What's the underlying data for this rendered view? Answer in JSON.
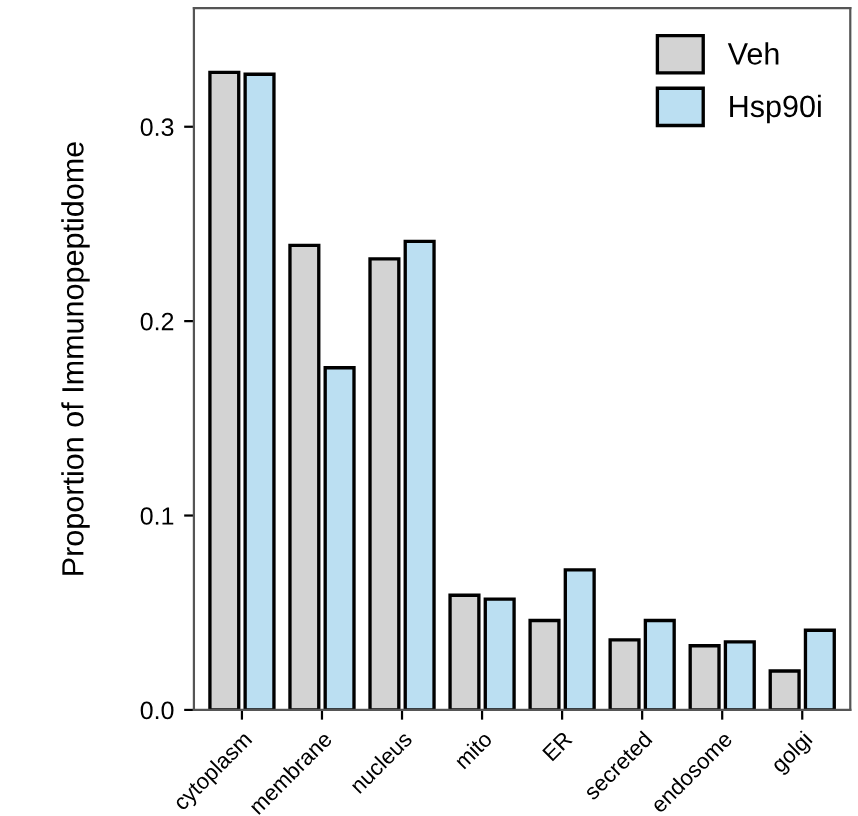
{
  "chart_data": {
    "type": "bar",
    "ylabel": "Proportion of Immunopeptidome",
    "categories": [
      "cytoplasm",
      "membrane",
      "nucleus",
      "mito",
      "ER",
      "secreted",
      "endosome",
      "golgi"
    ],
    "series": [
      {
        "name": "Veh",
        "color": "#d3d3d3",
        "values": [
          0.328,
          0.239,
          0.232,
          0.059,
          0.046,
          0.036,
          0.033,
          0.02
        ]
      },
      {
        "name": "Hsp90i",
        "color": "#bbdff2",
        "values": [
          0.327,
          0.176,
          0.241,
          0.057,
          0.072,
          0.046,
          0.035,
          0.041
        ]
      }
    ],
    "ylim": [
      0,
      0.361
    ],
    "yticks": [
      {
        "value": 0,
        "label": "0.0"
      },
      0.1,
      0.2,
      0.3
    ],
    "grid": false,
    "legend": "top right"
  }
}
